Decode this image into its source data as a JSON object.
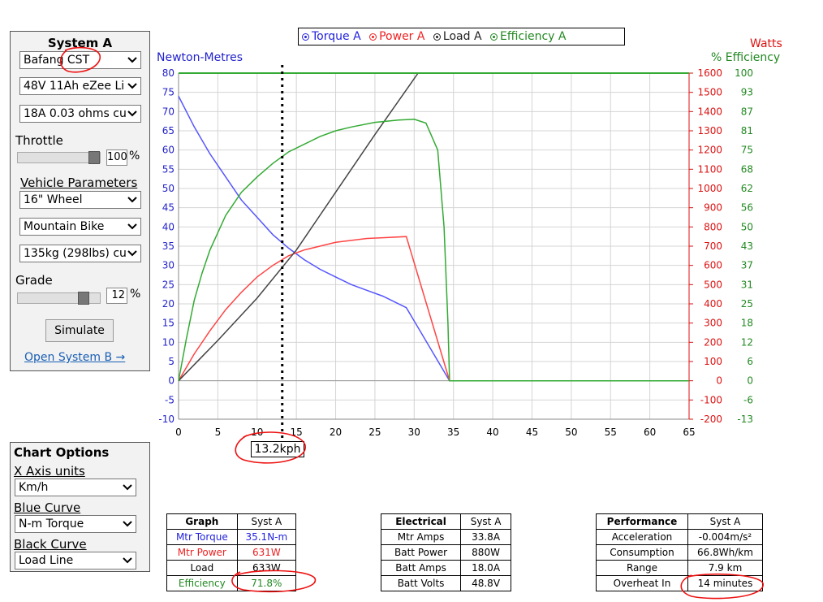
{
  "system_panel": {
    "title": "System A",
    "motor_select": "Bafang CST",
    "battery_select": "48V 11Ah eZee Li",
    "controller_select": "18A 0.03 ohms cu",
    "throttle_label": "Throttle",
    "throttle_value": "100",
    "throttle_pct": "%",
    "throttle_fraction": 1.0,
    "vehicle_label": "Vehicle Parameters",
    "wheel_select": "16\"  Wheel",
    "bike_select": "Mountain Bike",
    "weight_select": "135kg (298lbs) cu",
    "grade_label": "Grade",
    "grade_value": "12",
    "grade_pct": "%",
    "grade_fraction": 0.85,
    "simulate_label": "Simulate",
    "open_b_label": "Open System B →"
  },
  "chart_options": {
    "title": "Chart Options",
    "x_axis_label": "X Axis units",
    "x_axis_select": "Km/h",
    "blue_label": "Blue Curve",
    "blue_select": "N-m Torque",
    "black_label": "Black Curve",
    "black_select": "Load Line"
  },
  "legend": {
    "torque": "Torque A",
    "power": "Power A",
    "load": "Load A",
    "efficiency": "Efficiency A"
  },
  "axis_titles": {
    "left": "Newton-Metres",
    "right_top": "Watts",
    "right_bottom": "% Efficiency"
  },
  "cursor_readout": "13.2kph",
  "chart_data": {
    "type": "line",
    "xlim": [
      0,
      65
    ],
    "x_ticks": [
      0,
      5,
      10,
      15,
      20,
      25,
      30,
      35,
      40,
      45,
      50,
      55,
      60,
      65
    ],
    "ylim": [
      -10,
      80
    ],
    "y_ticks": [
      -10,
      -5,
      0,
      5,
      10,
      15,
      20,
      25,
      30,
      35,
      40,
      45,
      50,
      55,
      60,
      65,
      70,
      75,
      80
    ],
    "watts_ticks": [
      -200,
      -100,
      0,
      100,
      200,
      300,
      400,
      500,
      600,
      700,
      800,
      900,
      1000,
      1100,
      1200,
      1300,
      1400,
      1500,
      1600
    ],
    "efficiency_ticks": [
      -13,
      -6,
      0,
      6,
      12,
      18,
      25,
      31,
      37,
      43,
      50,
      56,
      62,
      68,
      75,
      81,
      87,
      93,
      100
    ],
    "grid": true,
    "cursor_x": 13.2,
    "series": [
      {
        "name": "Torque A",
        "color": "#5555ff",
        "x": [
          0,
          2,
          4,
          6,
          8,
          10,
          12,
          14,
          16,
          18,
          20,
          22,
          24,
          26,
          29,
          34.5,
          65
        ],
        "y": [
          74,
          66,
          59,
          53,
          47,
          42.5,
          38,
          34.5,
          31.5,
          29,
          27,
          25,
          23.5,
          22,
          19,
          0,
          0
        ]
      },
      {
        "name": "Power A",
        "color": "#ff4444",
        "x": [
          0,
          2,
          4,
          6,
          8,
          10,
          12,
          14,
          16,
          18,
          20,
          22,
          24,
          26,
          29,
          34.5,
          65
        ],
        "y": [
          0,
          7,
          13,
          18.5,
          23,
          27,
          30,
          32.5,
          34,
          35,
          36,
          36.5,
          37,
          37.2,
          37.5,
          0,
          0
        ]
      },
      {
        "name": "Load A",
        "color": "#444444",
        "x": [
          0,
          5,
          10,
          15,
          20,
          25,
          30.5
        ],
        "y": [
          0,
          10.5,
          21.5,
          34,
          49,
          64,
          81
        ]
      },
      {
        "name": "Efficiency A",
        "color": "#33aa33",
        "x": [
          0,
          1,
          2,
          3,
          4,
          6,
          8,
          10,
          12,
          14,
          16,
          18,
          20,
          22,
          25,
          28,
          30,
          31.5,
          33,
          33.8,
          34.3,
          34.5,
          65
        ],
        "y": [
          0,
          11,
          21,
          28,
          34,
          43,
          49,
          53,
          56.5,
          59.5,
          61.5,
          63.5,
          65,
          66,
          67.2,
          67.8,
          68,
          67,
          60,
          40,
          15,
          0,
          0
        ]
      },
      {
        "name": "Max Efficiency",
        "color": "#33aa33",
        "x": [
          0,
          65
        ],
        "y": [
          80,
          80
        ]
      }
    ]
  },
  "graph_table": {
    "headers": [
      "Graph",
      "Syst A"
    ],
    "rows": [
      {
        "label": "Mtr Torque",
        "value": "35.1N-m",
        "color": "#2222dd"
      },
      {
        "label": "Mtr Power",
        "value": "631W",
        "color": "#ee2222"
      },
      {
        "label": "Load",
        "value": "633W",
        "color": "#222222"
      },
      {
        "label": "Efficiency",
        "value": "71.8%",
        "color": "#228822"
      }
    ]
  },
  "electrical_table": {
    "headers": [
      "Electrical",
      "Syst A"
    ],
    "rows": [
      {
        "label": "Mtr Amps",
        "value": "33.8A"
      },
      {
        "label": "Batt Power",
        "value": "880W"
      },
      {
        "label": "Batt Amps",
        "value": "18.0A"
      },
      {
        "label": "Batt Volts",
        "value": "48.8V"
      }
    ]
  },
  "performance_table": {
    "headers": [
      "Performance",
      "Syst A"
    ],
    "rows": [
      {
        "label": "Acceleration",
        "value": "-0.004m/s²"
      },
      {
        "label": "Consumption",
        "value": "66.8Wh/km"
      },
      {
        "label": "Range",
        "value": "7.9 km"
      },
      {
        "label": "Overheat In",
        "value": "14 minutes"
      }
    ]
  },
  "colors": {
    "torque": "#5555ff",
    "power": "#ff4444",
    "load": "#444444",
    "efficiency": "#33aa33",
    "annotation": "#ee1111",
    "link": "#1a5fb4"
  }
}
